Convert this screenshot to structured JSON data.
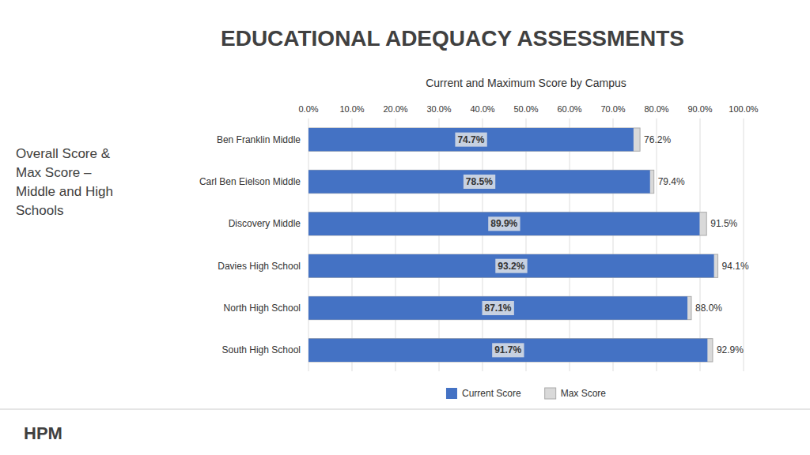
{
  "chart_data": {
    "type": "bar",
    "orientation": "horizontal",
    "stacked": false,
    "title": "EDUCATIONAL ADEQUACY ASSESSMENTS",
    "subtitle": "Current and Maximum Score by Campus",
    "annotations": [
      "Overall Score &\nMax Score –\nMiddle and High\nSchools",
      "HPM"
    ],
    "categories": [
      "Ben Franklin Middle",
      "Carl Ben Eielson Middle",
      "Discovery Middle",
      "Davies High School",
      "North High School",
      "South High School"
    ],
    "series": [
      {
        "name": "Current Score",
        "color": "#4472C4",
        "values": [
          0.747,
          0.785,
          0.899,
          0.932,
          0.871,
          0.917
        ],
        "value_labels": [
          "74.7%",
          "78.5%",
          "89.9%",
          "93.2%",
          "87.1%",
          "91.7%"
        ]
      },
      {
        "name": "Max Score",
        "color": "#D9D9D9",
        "values": [
          0.762,
          0.794,
          0.915,
          0.941,
          0.88,
          0.929
        ],
        "value_labels": [
          "76.2%",
          "79.4%",
          "91.5%",
          "94.1%",
          "88.0%",
          "92.9%"
        ]
      }
    ],
    "data_labels": true,
    "xlim": [
      0.0,
      1.0
    ],
    "xticks": [
      {
        "value": 0.0,
        "label": "0.0%"
      },
      {
        "value": 0.1,
        "label": "10.0%"
      },
      {
        "value": 0.2,
        "label": "20.0%"
      },
      {
        "value": 0.3,
        "label": "30.0%"
      },
      {
        "value": 0.4,
        "label": "40.0%"
      },
      {
        "value": 0.5,
        "label": "50.0%"
      },
      {
        "value": 0.6,
        "label": "60.0%"
      },
      {
        "value": 0.7,
        "label": "70.0%"
      },
      {
        "value": 0.8,
        "label": "80.0%"
      },
      {
        "value": 0.9,
        "label": "90.0%"
      },
      {
        "value": 1.0,
        "label": "100.0%"
      }
    ],
    "grid": true,
    "legend": "bottom"
  }
}
